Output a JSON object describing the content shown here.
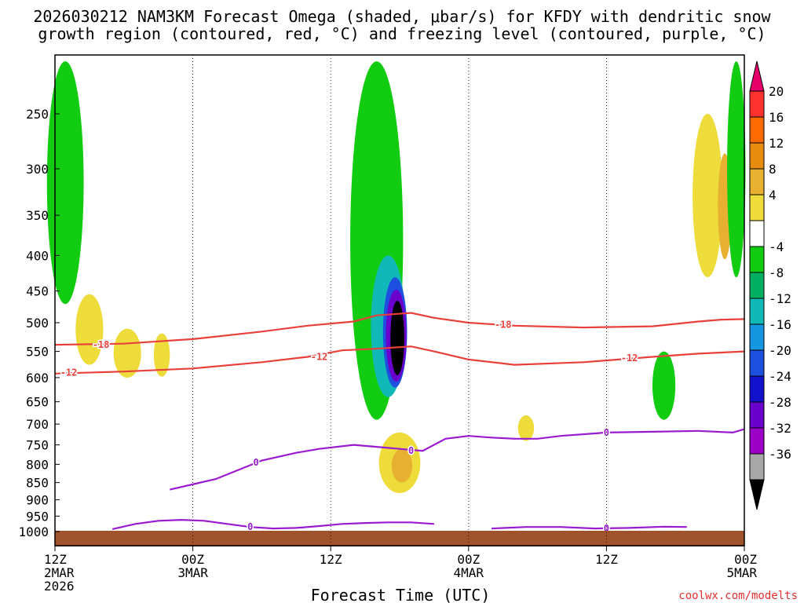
{
  "chart_data": {
    "type": "heatmap",
    "title_line1": "2026030212 NAM3KM Forecast Omega (shaded, μbar/s) for KFDY with dendritic snow",
    "title_line2": "growth region (contoured, red, °C) and freezing level (contoured, purple, °C)",
    "xlabel": "Forecast Time (UTC)",
    "ylabel": "",
    "credit": "coolwx.com/modelts",
    "x_unit": "hours since 2026-03-02 12Z",
    "xlim": [
      0,
      60
    ],
    "x_ticks": [
      {
        "x": 0,
        "lines": [
          "12Z",
          "2MAR",
          "2026"
        ]
      },
      {
        "x": 12,
        "lines": [
          "00Z",
          "3MAR"
        ]
      },
      {
        "x": 24,
        "lines": [
          "12Z"
        ]
      },
      {
        "x": 36,
        "lines": [
          "00Z",
          "4MAR"
        ]
      },
      {
        "x": 48,
        "lines": [
          "12Z"
        ]
      },
      {
        "x": 60,
        "lines": [
          "00Z",
          "5MAR"
        ]
      }
    ],
    "y_unit": "hPa",
    "y_ticks": [
      "250",
      "300",
      "350",
      "400",
      "450",
      "500",
      "550",
      "600",
      "650",
      "700",
      "750",
      "800",
      "850",
      "900",
      "950",
      "1000"
    ],
    "colorbar": {
      "labels": [
        "20",
        "16",
        "12",
        "8",
        "4",
        "-4",
        "-8",
        "-12",
        "-16",
        "-20",
        "-24",
        "-28",
        "-32",
        "-36"
      ],
      "colors": [
        "#e8006a",
        "#ff3030",
        "#ff6a00",
        "#e88c10",
        "#e8b030",
        "#eddc3a",
        "#ffffff",
        "#12cc12",
        "#00b060",
        "#10b8b8",
        "#1496e0",
        "#1e50e0",
        "#1212cc",
        "#6a00cc",
        "#9c00c8",
        "#a8a8a8",
        "#000000"
      ]
    },
    "contours": [
      {
        "name": "dendritic-top",
        "label": "-18",
        "color": "#e8403a",
        "x": [
          0,
          6,
          12,
          18,
          22,
          26,
          28,
          31,
          33,
          36,
          40,
          46,
          52,
          56,
          58,
          60
        ],
        "y": [
          538,
          536,
          528,
          515,
          505,
          498,
          488,
          484,
          492,
          500,
          505,
          508,
          506,
          498,
          495,
          494
        ],
        "labels": [
          {
            "x": 4,
            "y": 538
          },
          {
            "x": 39,
            "y": 503
          }
        ]
      },
      {
        "name": "dendritic-bottom",
        "label": "-12",
        "color": "#e8403a",
        "x": [
          0,
          6,
          12,
          18,
          22,
          25,
          28,
          31,
          33,
          36,
          40,
          46,
          52,
          56,
          60
        ],
        "y": [
          592,
          588,
          582,
          570,
          560,
          548,
          545,
          541,
          550,
          565,
          575,
          570,
          560,
          554,
          550
        ],
        "labels": [
          {
            "x": 1.2,
            "y": 590
          },
          {
            "x": 23,
            "y": 560
          },
          {
            "x": 50,
            "y": 562
          }
        ]
      },
      {
        "name": "freezing-level",
        "label": "0",
        "color": "#9a1ad0",
        "x": [
          10,
          14,
          18,
          21,
          23,
          26,
          28,
          30,
          32,
          34,
          36,
          38,
          40,
          42,
          44,
          48,
          52,
          56,
          59,
          60
        ],
        "y": [
          870,
          840,
          790,
          770,
          760,
          750,
          755,
          760,
          765,
          735,
          728,
          732,
          735,
          735,
          728,
          720,
          718,
          716,
          720,
          712
        ],
        "labels": [
          {
            "x": 17.5,
            "y": 795
          },
          {
            "x": 31,
            "y": 765
          },
          {
            "x": 48,
            "y": 720
          }
        ]
      },
      {
        "name": "freezing-level-low",
        "label": "0",
        "color": "#9a1ad0",
        "x": [
          5,
          7,
          9,
          11,
          13,
          15,
          17,
          19,
          21,
          23,
          25,
          27,
          29,
          31,
          33
        ],
        "y": [
          992,
          975,
          965,
          962,
          965,
          975,
          985,
          990,
          988,
          982,
          975,
          972,
          970,
          970,
          975
        ],
        "labels": [
          {
            "x": 17,
            "y": 985
          }
        ]
      },
      {
        "name": "freezing-level-right",
        "label": "0",
        "color": "#9a1ad0",
        "x": [
          38,
          41,
          44,
          47,
          50,
          53,
          55
        ],
        "y": [
          990,
          985,
          985,
          990,
          988,
          984,
          985
        ],
        "labels": [
          {
            "x": 48,
            "y": 990
          }
        ]
      }
    ],
    "regions": [
      {
        "name": "omega-left-green",
        "level": "-4",
        "x": 0.9,
        "y": 340,
        "rx": 1.6,
        "ry": 130
      },
      {
        "name": "omega-left-yellow-1",
        "level": "4",
        "x": 3,
        "y": 515,
        "rx": 1.2,
        "ry": 60
      },
      {
        "name": "omega-left-yellow-2",
        "level": "4",
        "x": 6.3,
        "y": 555,
        "rx": 1.2,
        "ry": 45
      },
      {
        "name": "omega-left-yellow-3",
        "level": "4",
        "x": 9.3,
        "y": 558,
        "rx": 0.7,
        "ry": 40
      },
      {
        "name": "omega-main-green",
        "level": "-4",
        "x": 28,
        "y": 450,
        "rx": 2.3,
        "ry": 240
      },
      {
        "name": "omega-main-cyan",
        "level": "-12",
        "x": 29,
        "y": 520,
        "rx": 1.5,
        "ry": 120
      },
      {
        "name": "omega-main-blue",
        "level": "-20",
        "x": 29.6,
        "y": 525,
        "rx": 1.05,
        "ry": 95
      },
      {
        "name": "omega-main-purple",
        "level": "-28",
        "x": 29.7,
        "y": 528,
        "rx": 0.9,
        "ry": 80
      },
      {
        "name": "omega-main-black",
        "level": "-36",
        "x": 29.8,
        "y": 530,
        "rx": 0.6,
        "ry": 65
      },
      {
        "name": "omega-main-yellow",
        "level": "4",
        "x": 30,
        "y": 800,
        "rx": 1.8,
        "ry": 80
      },
      {
        "name": "omega-main-orange",
        "level": "8",
        "x": 30.2,
        "y": 805,
        "rx": 0.9,
        "ry": 45
      },
      {
        "name": "omega-right-yellow",
        "level": "4",
        "x": 56.8,
        "y": 340,
        "rx": 1.3,
        "ry": 90
      },
      {
        "name": "omega-right-orange",
        "level": "8",
        "x": 58.3,
        "y": 345,
        "rx": 0.6,
        "ry": 60
      },
      {
        "name": "omega-right-green",
        "level": "-4",
        "x": 59.3,
        "y": 320,
        "rx": 0.8,
        "ry": 110
      },
      {
        "name": "omega-right-lower-green",
        "level": "-4",
        "x": 53,
        "y": 620,
        "rx": 1.0,
        "ry": 70
      },
      {
        "name": "omega-mid-yellow",
        "level": "4",
        "x": 41,
        "y": 710,
        "rx": 0.7,
        "ry": 30
      }
    ]
  }
}
